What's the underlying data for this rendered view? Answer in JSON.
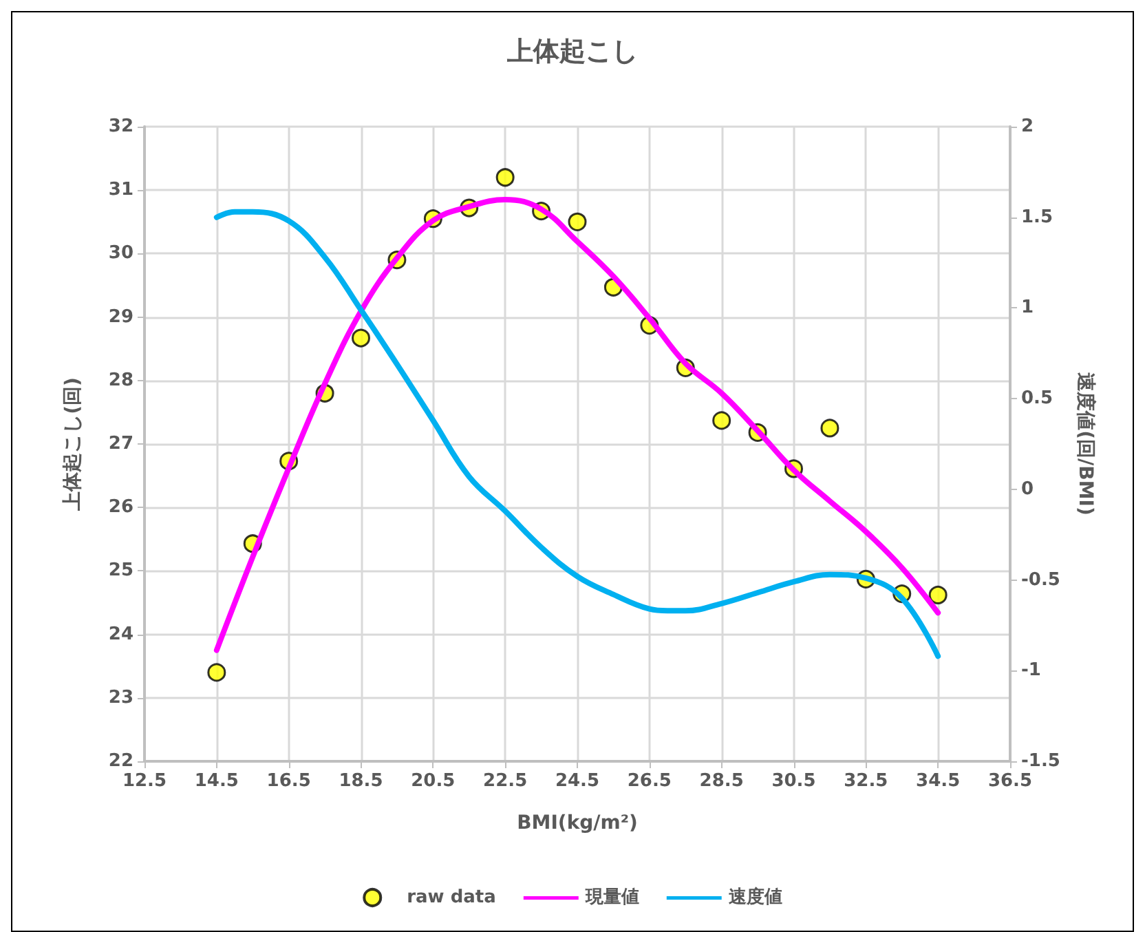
{
  "chart_data": {
    "type": "scatter",
    "title": "上体起こし",
    "xlabel": "BMI(kg/m²)",
    "ylabel": "上体起こし(回)",
    "y2label": "速度値(回/BMI)",
    "xlim": [
      12.5,
      36.5
    ],
    "xticks": [
      12.5,
      14.5,
      16.5,
      18.5,
      20.5,
      22.5,
      24.5,
      26.5,
      28.5,
      30.5,
      32.5,
      34.5,
      36.5
    ],
    "ylim": [
      22,
      32
    ],
    "yticks": [
      22,
      23,
      24,
      25,
      26,
      27,
      28,
      29,
      30,
      31,
      32
    ],
    "y2lim": [
      -1.5,
      2
    ],
    "y2ticks": [
      -1.5,
      -1,
      -0.5,
      0,
      0.5,
      1,
      1.5,
      2
    ],
    "grid": true,
    "legend": "bottom",
    "series": [
      {
        "name": "raw data",
        "marker": "circle",
        "color": "#ffff00",
        "x": [
          14.5,
          15.5,
          16.5,
          17.5,
          18.5,
          19.5,
          20.5,
          21.5,
          22.5,
          23.5,
          24.5,
          25.5,
          26.5,
          27.5,
          28.5,
          29.5,
          30.5,
          31.5,
          32.5,
          33.5,
          34.5
        ],
        "values": [
          23.4,
          25.43,
          26.73,
          27.8,
          28.67,
          29.9,
          30.55,
          30.72,
          31.2,
          30.67,
          30.5,
          29.47,
          28.87,
          28.2,
          27.37,
          27.18,
          26.61,
          27.25,
          24.87,
          24.64,
          24.62
        ]
      },
      {
        "name": "現量値",
        "type": "line",
        "marker": "none",
        "color": "#ff00ff",
        "x": [
          14.5,
          15.5,
          16.5,
          17.5,
          18.5,
          19.5,
          20.5,
          21.5,
          22.5,
          23.5,
          24.5,
          25.5,
          26.5,
          27.5,
          28.5,
          29.5,
          30.5,
          31.5,
          32.5,
          33.5,
          34.5
        ],
        "values": [
          23.75,
          25.22,
          26.62,
          27.95,
          29.09,
          29.93,
          30.52,
          30.74,
          30.85,
          30.7,
          30.19,
          29.64,
          28.98,
          28.27,
          27.8,
          27.21,
          26.59,
          26.1,
          25.62,
          25.05,
          24.34
        ]
      },
      {
        "name": "速度値",
        "type": "line",
        "marker": "none",
        "axis": "y2",
        "color": "#00b0f0",
        "x": [
          14.5,
          15.0,
          15.5,
          16.5,
          17.5,
          18.5,
          19.5,
          20.5,
          21.5,
          22.5,
          23.5,
          24.5,
          25.5,
          26.5,
          27.0,
          27.5,
          28.5,
          29.5,
          30.5,
          31.5,
          32.5,
          33.5,
          34.5
        ],
        "values": [
          1.5,
          1.53,
          1.53,
          1.48,
          1.28,
          0.99,
          0.69,
          0.38,
          0.07,
          -0.12,
          -0.32,
          -0.48,
          -0.58,
          -0.66,
          -0.67,
          -0.67,
          -0.63,
          -0.57,
          -0.51,
          -0.47,
          -0.49,
          -0.6,
          -0.92
        ]
      }
    ]
  }
}
